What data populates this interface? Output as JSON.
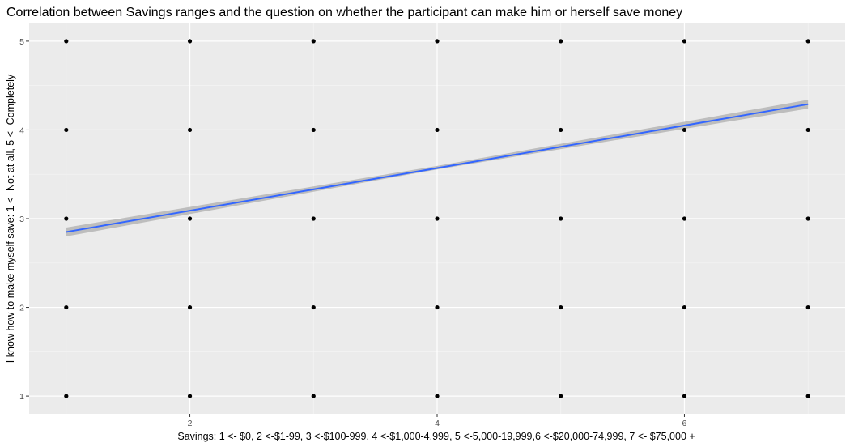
{
  "chart_data": {
    "type": "scatter",
    "title": "Correlation between Savings ranges and the question on whether the participant can make him or herself save money",
    "xlabel": "Savings: 1 <- $0, 2 <-$1-99, 3 <-$100-999, 4 <-$1,000-4,999, 5 <-5,000-19,999,6 <-$20,000-74,999, 7 <- $75,000 +",
    "ylabel": "I know how to make myself save: 1 <- Not at all, 5 <- Completely",
    "xlim": [
      0.7,
      7.3
    ],
    "ylim": [
      0.8,
      5.2
    ],
    "x_ticks": [
      2,
      4,
      6
    ],
    "x_minor_ticks": [
      1,
      3,
      5,
      7
    ],
    "y_ticks": [
      1,
      2,
      3,
      4,
      5
    ],
    "grid": true,
    "legend": "none",
    "points": [
      {
        "x": 1,
        "y": 1
      },
      {
        "x": 1,
        "y": 2
      },
      {
        "x": 1,
        "y": 3
      },
      {
        "x": 1,
        "y": 4
      },
      {
        "x": 1,
        "y": 5
      },
      {
        "x": 2,
        "y": 1
      },
      {
        "x": 2,
        "y": 2
      },
      {
        "x": 2,
        "y": 3
      },
      {
        "x": 2,
        "y": 4
      },
      {
        "x": 2,
        "y": 5
      },
      {
        "x": 3,
        "y": 1
      },
      {
        "x": 3,
        "y": 2
      },
      {
        "x": 3,
        "y": 3
      },
      {
        "x": 3,
        "y": 4
      },
      {
        "x": 3,
        "y": 5
      },
      {
        "x": 4,
        "y": 1
      },
      {
        "x": 4,
        "y": 2
      },
      {
        "x": 4,
        "y": 3
      },
      {
        "x": 4,
        "y": 4
      },
      {
        "x": 4,
        "y": 5
      },
      {
        "x": 5,
        "y": 1
      },
      {
        "x": 5,
        "y": 2
      },
      {
        "x": 5,
        "y": 3
      },
      {
        "x": 5,
        "y": 4
      },
      {
        "x": 5,
        "y": 5
      },
      {
        "x": 6,
        "y": 1
      },
      {
        "x": 6,
        "y": 2
      },
      {
        "x": 6,
        "y": 3
      },
      {
        "x": 6,
        "y": 4
      },
      {
        "x": 6,
        "y": 5
      },
      {
        "x": 7,
        "y": 1
      },
      {
        "x": 7,
        "y": 2
      },
      {
        "x": 7,
        "y": 3
      },
      {
        "x": 7,
        "y": 4
      },
      {
        "x": 7,
        "y": 5
      }
    ],
    "trend_line": {
      "method": "linear",
      "start": {
        "x": 1,
        "y": 2.85
      },
      "end": {
        "x": 7,
        "y": 4.29
      },
      "ci_band": [
        {
          "x": 1,
          "lower": 2.8,
          "upper": 2.9
        },
        {
          "x": 4,
          "lower": 3.555,
          "upper": 3.595
        },
        {
          "x": 7,
          "lower": 4.24,
          "upper": 4.34
        }
      ]
    },
    "colors": {
      "panel_background": "#ebebeb",
      "grid_major": "#ffffff",
      "grid_minor": "#f5f5f5",
      "points": "#000000",
      "trend_line": "#3366ff",
      "ci_band": "#b8b8b8"
    }
  }
}
